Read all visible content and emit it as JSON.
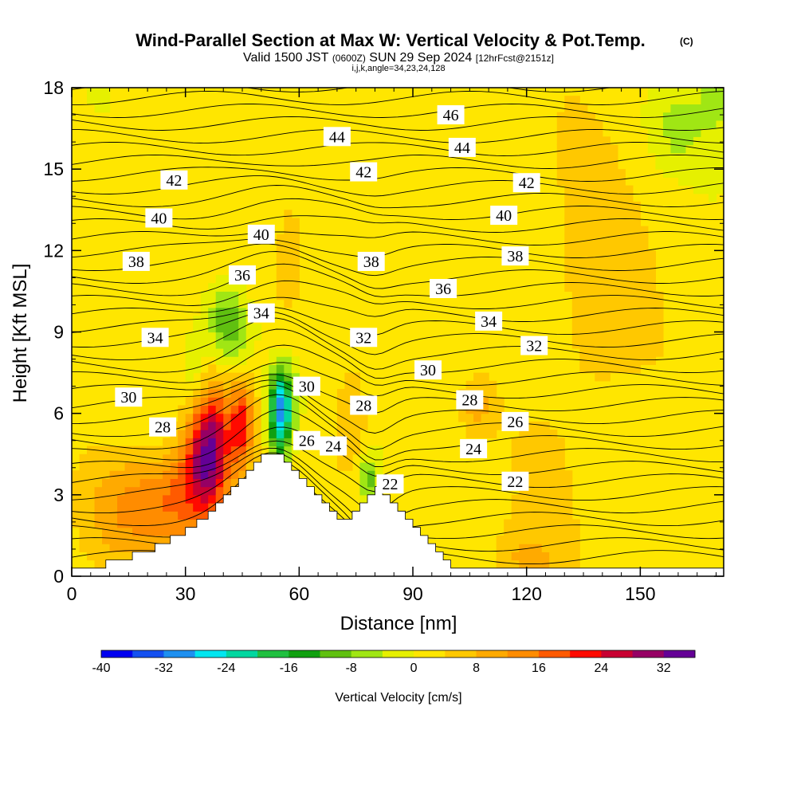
{
  "header": {
    "title_main": "Wind-Parallel Section at Max W: Vertical Velocity & Pot.Temp.",
    "title_unit": "(C)",
    "subtitle_valid": "Valid 1500 JST",
    "subtitle_utc": "(0600Z)",
    "subtitle_date": "SUN 29 Sep 2024",
    "subtitle_fcst": "[12hrFcst@2151z]",
    "index_line": "i,j,k,angle=34,23,24,128"
  },
  "chart_data": {
    "type": "heatmap",
    "xlabel": "Distance [nm]",
    "ylabel": "Height [Kft MSL]",
    "xlim": [
      0,
      172
    ],
    "ylim": [
      0,
      18
    ],
    "xticks": [
      0,
      30,
      60,
      90,
      120,
      150
    ],
    "yticks": [
      0,
      3,
      6,
      9,
      12,
      15,
      18
    ],
    "colorbar": {
      "label": "Vertical Velocity [cm/s]",
      "ticks": [
        -40,
        -32,
        -24,
        -16,
        -8,
        0,
        8,
        16,
        24,
        32
      ],
      "levels": [
        -40,
        -36,
        -32,
        -28,
        -24,
        -20,
        -16,
        -12,
        -8,
        -4,
        0,
        4,
        8,
        12,
        16,
        20,
        24,
        28,
        32,
        36
      ],
      "colors": [
        "#0000f0",
        "#1450f0",
        "#1e90f0",
        "#00e6f0",
        "#00d7a0",
        "#20c040",
        "#10a010",
        "#60c010",
        "#a0e614",
        "#e6f000",
        "#ffe600",
        "#ffc800",
        "#ffaa00",
        "#ff8c00",
        "#ff5a00",
        "#ff0a00",
        "#c80032",
        "#960064",
        "#640096"
      ]
    },
    "terrain": [
      [
        0,
        0.3
      ],
      [
        9,
        0.3
      ],
      [
        9,
        0.6
      ],
      [
        16,
        0.6
      ],
      [
        16,
        0.9
      ],
      [
        22,
        0.9
      ],
      [
        22,
        1.2
      ],
      [
        26,
        1.2
      ],
      [
        26,
        1.5
      ],
      [
        30,
        1.5
      ],
      [
        30,
        1.8
      ],
      [
        33,
        1.8
      ],
      [
        33,
        2.1
      ],
      [
        36,
        2.1
      ],
      [
        36,
        2.4
      ],
      [
        38,
        2.4
      ],
      [
        38,
        2.7
      ],
      [
        40,
        2.7
      ],
      [
        40,
        3.0
      ],
      [
        42,
        3.0
      ],
      [
        42,
        3.3
      ],
      [
        44,
        3.3
      ],
      [
        44,
        3.6
      ],
      [
        46,
        3.6
      ],
      [
        46,
        3.9
      ],
      [
        48,
        3.9
      ],
      [
        48,
        4.2
      ],
      [
        50,
        4.2
      ],
      [
        50,
        4.5
      ],
      [
        56,
        4.5
      ],
      [
        56,
        4.2
      ],
      [
        58,
        4.2
      ],
      [
        58,
        3.9
      ],
      [
        60,
        3.9
      ],
      [
        60,
        3.6
      ],
      [
        62,
        3.6
      ],
      [
        62,
        3.3
      ],
      [
        64,
        3.3
      ],
      [
        64,
        3.0
      ],
      [
        66,
        3.0
      ],
      [
        66,
        2.7
      ],
      [
        68,
        2.7
      ],
      [
        68,
        2.4
      ],
      [
        70,
        2.4
      ],
      [
        70,
        2.1
      ],
      [
        74,
        2.1
      ],
      [
        74,
        2.4
      ],
      [
        76,
        2.4
      ],
      [
        76,
        2.7
      ],
      [
        78,
        2.7
      ],
      [
        78,
        3.0
      ],
      [
        80,
        3.0
      ],
      [
        80,
        3.3
      ],
      [
        82,
        3.3
      ],
      [
        82,
        3.0
      ],
      [
        84,
        3.0
      ],
      [
        84,
        2.7
      ],
      [
        86,
        2.7
      ],
      [
        86,
        2.4
      ],
      [
        88,
        2.4
      ],
      [
        88,
        2.1
      ],
      [
        90,
        2.1
      ],
      [
        90,
        1.8
      ],
      [
        92,
        1.8
      ],
      [
        92,
        1.5
      ],
      [
        94,
        1.5
      ],
      [
        94,
        1.2
      ],
      [
        96,
        1.2
      ],
      [
        96,
        0.9
      ],
      [
        98,
        0.9
      ],
      [
        98,
        0.6
      ],
      [
        100,
        0.6
      ],
      [
        100,
        0.3
      ],
      [
        172,
        0.3
      ]
    ],
    "w_features": [
      {
        "x": 36,
        "z": 4.8,
        "rx": 6,
        "rz": 2.4,
        "w": 32
      },
      {
        "x": 28,
        "z": 2.8,
        "rx": 10,
        "rz": 1.8,
        "w": 14
      },
      {
        "x": 45,
        "z": 5.6,
        "rx": 3,
        "rz": 1.6,
        "w": 18
      },
      {
        "x": 14,
        "z": 2.5,
        "rx": 10,
        "rz": 2.0,
        "w": 9
      },
      {
        "x": 55,
        "z": 5.8,
        "rx": 3,
        "rz": 1.6,
        "w": -24
      },
      {
        "x": 56,
        "z": 6.6,
        "rx": 4,
        "rz": 1.4,
        "w": -12
      },
      {
        "x": 42,
        "z": 8.8,
        "rx": 6,
        "rz": 1.4,
        "w": -12
      },
      {
        "x": 33,
        "z": 7.0,
        "rx": 4,
        "rz": 1.8,
        "w": -8
      },
      {
        "x": 78,
        "z": 3.6,
        "rx": 2.5,
        "rz": 1.0,
        "w": -12
      },
      {
        "x": 74,
        "z": 6.0,
        "rx": 5,
        "rz": 2.5,
        "w": 6
      },
      {
        "x": 40,
        "z": 10.0,
        "rx": 5,
        "rz": 1.0,
        "w": -6
      },
      {
        "x": 120,
        "z": 0.6,
        "rx": 8,
        "rz": 1.2,
        "w": 6
      },
      {
        "x": 135,
        "z": 8.5,
        "rx": 18,
        "rz": 8.0,
        "w": 4
      },
      {
        "x": 160,
        "z": 16.5,
        "rx": 8,
        "rz": 1.5,
        "w": -6
      },
      {
        "x": 170,
        "z": 17.5,
        "rx": 4,
        "rz": 1.0,
        "w": -8
      },
      {
        "x": 8,
        "z": 17.8,
        "rx": 3,
        "rz": 0.6,
        "w": -6
      },
      {
        "x": 84,
        "z": 15.0,
        "rx": 1,
        "rz": 0.6,
        "w": -8
      },
      {
        "x": 107,
        "z": 6.2,
        "rx": 4,
        "rz": 0.8,
        "w": 7
      },
      {
        "x": 58,
        "z": 12.0,
        "rx": 6,
        "rz": 3.0,
        "w": 5
      }
    ],
    "theta_labels": [
      {
        "x": 15,
        "z": 6.6,
        "v": "30"
      },
      {
        "x": 24,
        "z": 5.5,
        "v": "28"
      },
      {
        "x": 22,
        "z": 8.8,
        "v": "34"
      },
      {
        "x": 17,
        "z": 11.6,
        "v": "38"
      },
      {
        "x": 23,
        "z": 13.2,
        "v": "40"
      },
      {
        "x": 27,
        "z": 14.6,
        "v": "42"
      },
      {
        "x": 45,
        "z": 11.1,
        "v": "36"
      },
      {
        "x": 50,
        "z": 12.6,
        "v": "40"
      },
      {
        "x": 50,
        "z": 9.7,
        "v": "34"
      },
      {
        "x": 62,
        "z": 7.0,
        "v": "30"
      },
      {
        "x": 62,
        "z": 5.0,
        "v": "26"
      },
      {
        "x": 69,
        "z": 4.8,
        "v": "24"
      },
      {
        "x": 70,
        "z": 16.2,
        "v": "44"
      },
      {
        "x": 77,
        "z": 14.9,
        "v": "42"
      },
      {
        "x": 79,
        "z": 11.6,
        "v": "38"
      },
      {
        "x": 77,
        "z": 8.8,
        "v": "32"
      },
      {
        "x": 77,
        "z": 6.3,
        "v": "28"
      },
      {
        "x": 84,
        "z": 3.4,
        "v": "22"
      },
      {
        "x": 94,
        "z": 7.6,
        "v": "30"
      },
      {
        "x": 98,
        "z": 10.6,
        "v": "36"
      },
      {
        "x": 100,
        "z": 17.0,
        "v": "46"
      },
      {
        "x": 103,
        "z": 15.8,
        "v": "44"
      },
      {
        "x": 106,
        "z": 4.7,
        "v": "24"
      },
      {
        "x": 105,
        "z": 6.5,
        "v": "28"
      },
      {
        "x": 110,
        "z": 9.4,
        "v": "34"
      },
      {
        "x": 114,
        "z": 13.3,
        "v": "40"
      },
      {
        "x": 117,
        "z": 11.8,
        "v": "38"
      },
      {
        "x": 117,
        "z": 5.7,
        "v": "26"
      },
      {
        "x": 117,
        "z": 3.5,
        "v": "22"
      },
      {
        "x": 120,
        "z": 14.5,
        "v": "42"
      },
      {
        "x": 122,
        "z": 8.5,
        "v": "32"
      }
    ]
  }
}
